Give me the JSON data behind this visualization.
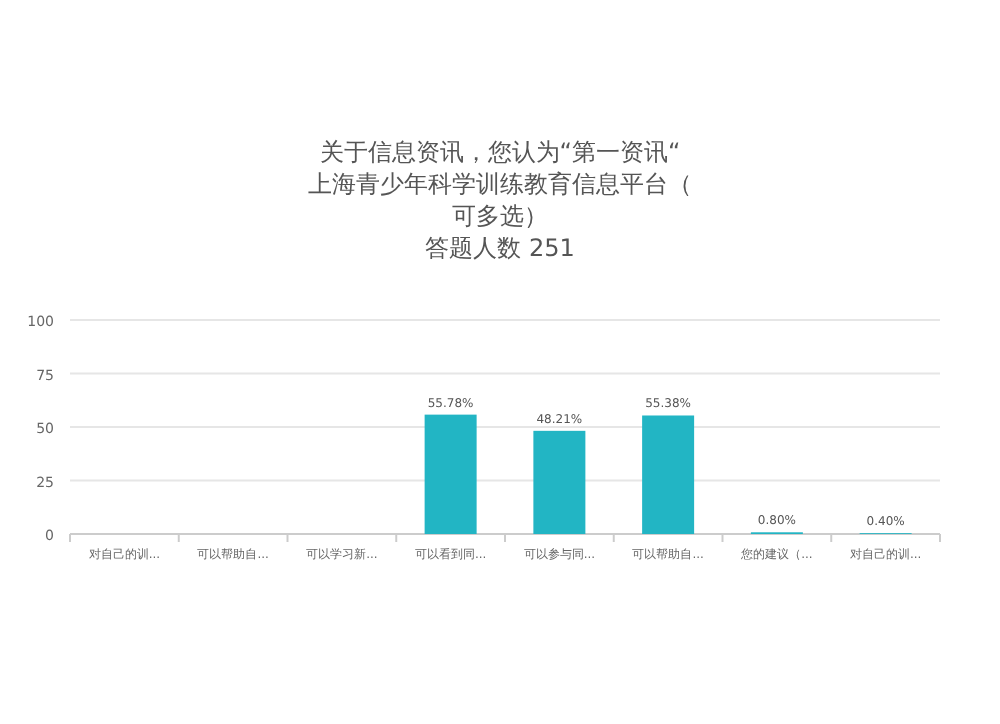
{
  "chart_data": {
    "type": "bar",
    "title": "关于信息资讯，您认为“第一资讯“上海青少年科学训练教育信息平台（可多选）",
    "subtitle": "答题人数 251",
    "categories": [
      "对自己的训...",
      "可以帮助自...",
      "可以学习新...",
      "可以看到同...",
      "可以参与同...",
      "可以帮助自...",
      "您的建议（...",
      "对自己的训..."
    ],
    "values": [
      null,
      null,
      null,
      55.78,
      48.21,
      55.38,
      0.8,
      0.4
    ],
    "value_labels": [
      null,
      null,
      null,
      "55.78%",
      "48.21%",
      "55.38%",
      "0.80%",
      "0.40%"
    ],
    "color": "#22b5c4",
    "ylim": [
      0,
      100
    ],
    "yticks": [
      0,
      25,
      50,
      75,
      100
    ],
    "grid": "y"
  }
}
